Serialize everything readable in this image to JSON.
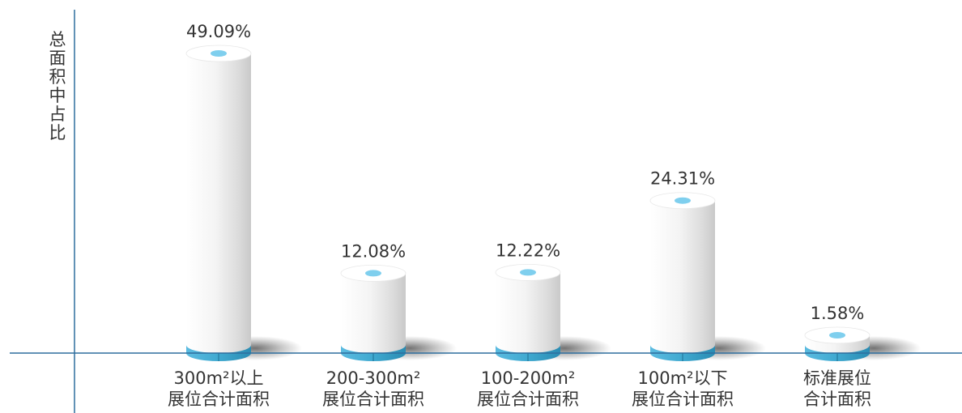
{
  "chart_data": {
    "type": "bar",
    "title": "",
    "ylabel": "总面积中占比",
    "xlabel": "",
    "ylim": [
      0,
      50
    ],
    "categories": [
      [
        "300m²以上",
        "展位合计面积"
      ],
      [
        "200-300m²",
        "展位合计面积"
      ],
      [
        "100-200m²",
        "展位合计面积"
      ],
      [
        "100m²以下",
        "展位合计面积"
      ],
      [
        "标准展位",
        "合计面积"
      ]
    ],
    "values": [
      49.09,
      12.08,
      12.22,
      24.31,
      1.58
    ],
    "value_labels": [
      "49.09%",
      "12.08%",
      "12.22%",
      "24.31%",
      "1.58%"
    ],
    "colors": {
      "axis": "#2e6e9e",
      "base": "#3fa9d0",
      "top_dot": "#7fcfee",
      "text": "#333333"
    }
  }
}
